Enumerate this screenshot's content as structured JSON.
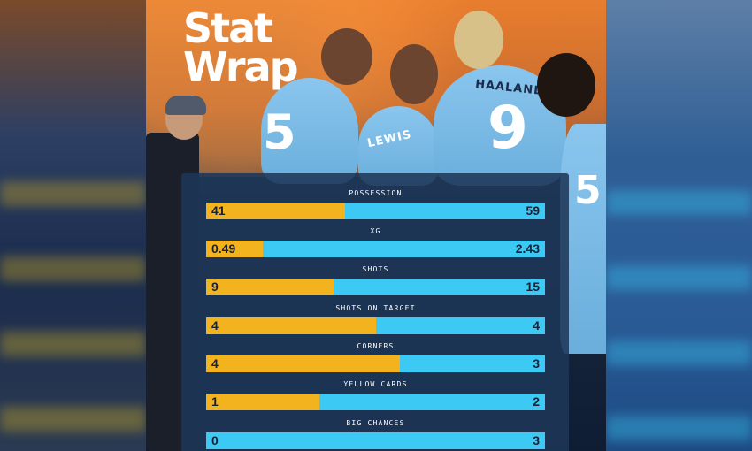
{
  "title": {
    "line1": "Stat",
    "line2": "Wrap"
  },
  "photo": {
    "jersey_left_number": "5",
    "jersey_right_number": "9",
    "jersey_right_name": "HAALAND",
    "jersey_center_name": "LEWIS",
    "jersey_far_right_number": "5"
  },
  "colors": {
    "home": "#f2b31e",
    "away": "#3ccaf5",
    "card": "#1e3758"
  },
  "stats": [
    {
      "label": "POSSESSION",
      "home": "41",
      "away": "59",
      "home_share": 0.41
    },
    {
      "label": "XG",
      "home": "0.49",
      "away": "2.43",
      "home_share": 0.168
    },
    {
      "label": "SHOTS",
      "home": "9",
      "away": "15",
      "home_share": 0.375
    },
    {
      "label": "SHOTS ON TARGET",
      "home": "4",
      "away": "4",
      "home_share": 0.5
    },
    {
      "label": "CORNERS",
      "home": "4",
      "away": "3",
      "home_share": 0.571
    },
    {
      "label": "YELLOW CARDS",
      "home": "1",
      "away": "2",
      "home_share": 0.333
    },
    {
      "label": "BIG CHANCES",
      "home": "0",
      "away": "3",
      "home_share": 0.0
    }
  ]
}
